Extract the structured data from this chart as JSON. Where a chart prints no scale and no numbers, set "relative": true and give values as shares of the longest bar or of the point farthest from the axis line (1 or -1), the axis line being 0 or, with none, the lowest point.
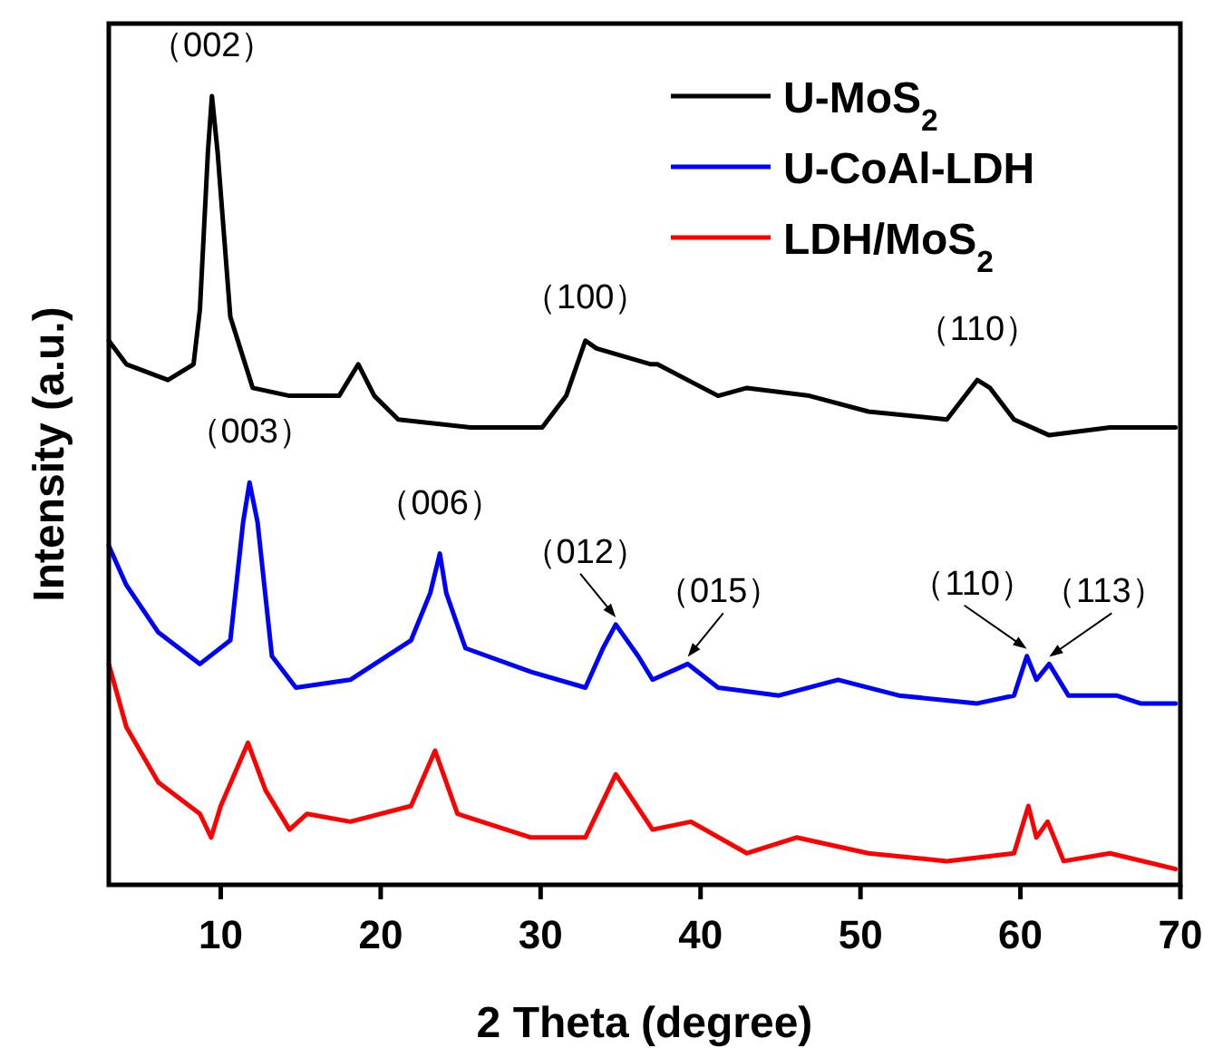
{
  "chart_data": {
    "type": "line",
    "relative": true,
    "xlabel": "2 Theta (degree)",
    "ylabel": "Intensity (a.u.)",
    "xlim": [
      3,
      70
    ],
    "xticks": [
      10,
      20,
      30,
      40,
      50,
      60,
      70
    ],
    "legend": "top right",
    "series": [
      {
        "name": "U-MoS$_{2}$",
        "color": "#000000",
        "x": [
          3.0,
          4.1,
          6.7,
          8.3,
          8.7,
          9.2,
          9.45,
          9.8,
          10.6,
          12.0,
          14.3,
          17.4,
          18.6,
          19.6,
          21.1,
          25.6,
          30.1,
          31.6,
          32.8,
          33.5,
          36.9,
          37.3,
          41.1,
          42.9,
          46.8,
          50.5,
          55.4,
          57.3,
          58.1,
          59.6,
          61.8,
          65.6,
          69.7
        ],
        "values": [
          0.69,
          0.66,
          0.64,
          0.66,
          0.73,
          0.93,
          1.0,
          0.93,
          0.72,
          0.63,
          0.62,
          0.62,
          0.66,
          0.62,
          0.59,
          0.58,
          0.58,
          0.62,
          0.69,
          0.68,
          0.66,
          0.66,
          0.62,
          0.63,
          0.62,
          0.6,
          0.59,
          0.64,
          0.63,
          0.59,
          0.57,
          0.58,
          0.58
        ]
      },
      {
        "name": "U-CoAl-LDH",
        "color": "#0000ff",
        "x": [
          3.0,
          4.1,
          6.1,
          8.7,
          10.6,
          11.4,
          11.8,
          12.3,
          13.2,
          14.7,
          18.1,
          21.9,
          23.1,
          23.7,
          24.1,
          25.3,
          29.4,
          32.8,
          33.9,
          34.7,
          36.1,
          37.0,
          39.2,
          41.1,
          44.9,
          48.6,
          52.4,
          57.3,
          59.6,
          60.4,
          61.0,
          61.8,
          63.0,
          66.0,
          67.5,
          69.7
        ],
        "values": [
          0.43,
          0.38,
          0.32,
          0.28,
          0.31,
          0.46,
          0.51,
          0.46,
          0.29,
          0.25,
          0.26,
          0.31,
          0.37,
          0.42,
          0.37,
          0.3,
          0.27,
          0.25,
          0.3,
          0.33,
          0.29,
          0.26,
          0.28,
          0.25,
          0.24,
          0.26,
          0.24,
          0.23,
          0.24,
          0.29,
          0.26,
          0.28,
          0.24,
          0.24,
          0.23,
          0.23
        ]
      },
      {
        "name": "LDH/MoS$_{2}$",
        "color": "#ff0000",
        "x": [
          3.0,
          4.1,
          6.1,
          8.7,
          9.4,
          10.0,
          11.7,
          12.8,
          14.3,
          15.4,
          18.1,
          21.9,
          23.4,
          24.8,
          29.4,
          32.8,
          34.7,
          37.0,
          39.4,
          42.9,
          46.0,
          50.5,
          55.4,
          59.6,
          60.5,
          61.0,
          61.7,
          62.7,
          65.6,
          69.7
        ],
        "values": [
          0.28,
          0.2,
          0.13,
          0.09,
          0.06,
          0.1,
          0.18,
          0.12,
          0.07,
          0.09,
          0.08,
          0.1,
          0.17,
          0.09,
          0.06,
          0.06,
          0.14,
          0.07,
          0.08,
          0.04,
          0.06,
          0.04,
          0.03,
          0.04,
          0.1,
          0.06,
          0.08,
          0.03,
          0.04,
          0.02
        ]
      }
    ],
    "annotations": [
      {
        "text": "（002）",
        "x": 9.45,
        "y": 1.0
      },
      {
        "text": "（100）",
        "x": 32.8,
        "y": 0.68
      },
      {
        "text": "（110）",
        "x": 57.3,
        "y": 0.64
      },
      {
        "text": "（003）",
        "x": 11.8,
        "y": 0.51
      },
      {
        "text": "（006）",
        "x": 23.7,
        "y": 0.42
      },
      {
        "text": "（012）",
        "x": 34.7,
        "y": 0.33
      },
      {
        "text": "（015）",
        "x": 39.2,
        "y": 0.28
      },
      {
        "text": "（110）",
        "x": 60.4,
        "y": 0.29
      },
      {
        "text": "（113）",
        "x": 61.8,
        "y": 0.28
      }
    ]
  }
}
